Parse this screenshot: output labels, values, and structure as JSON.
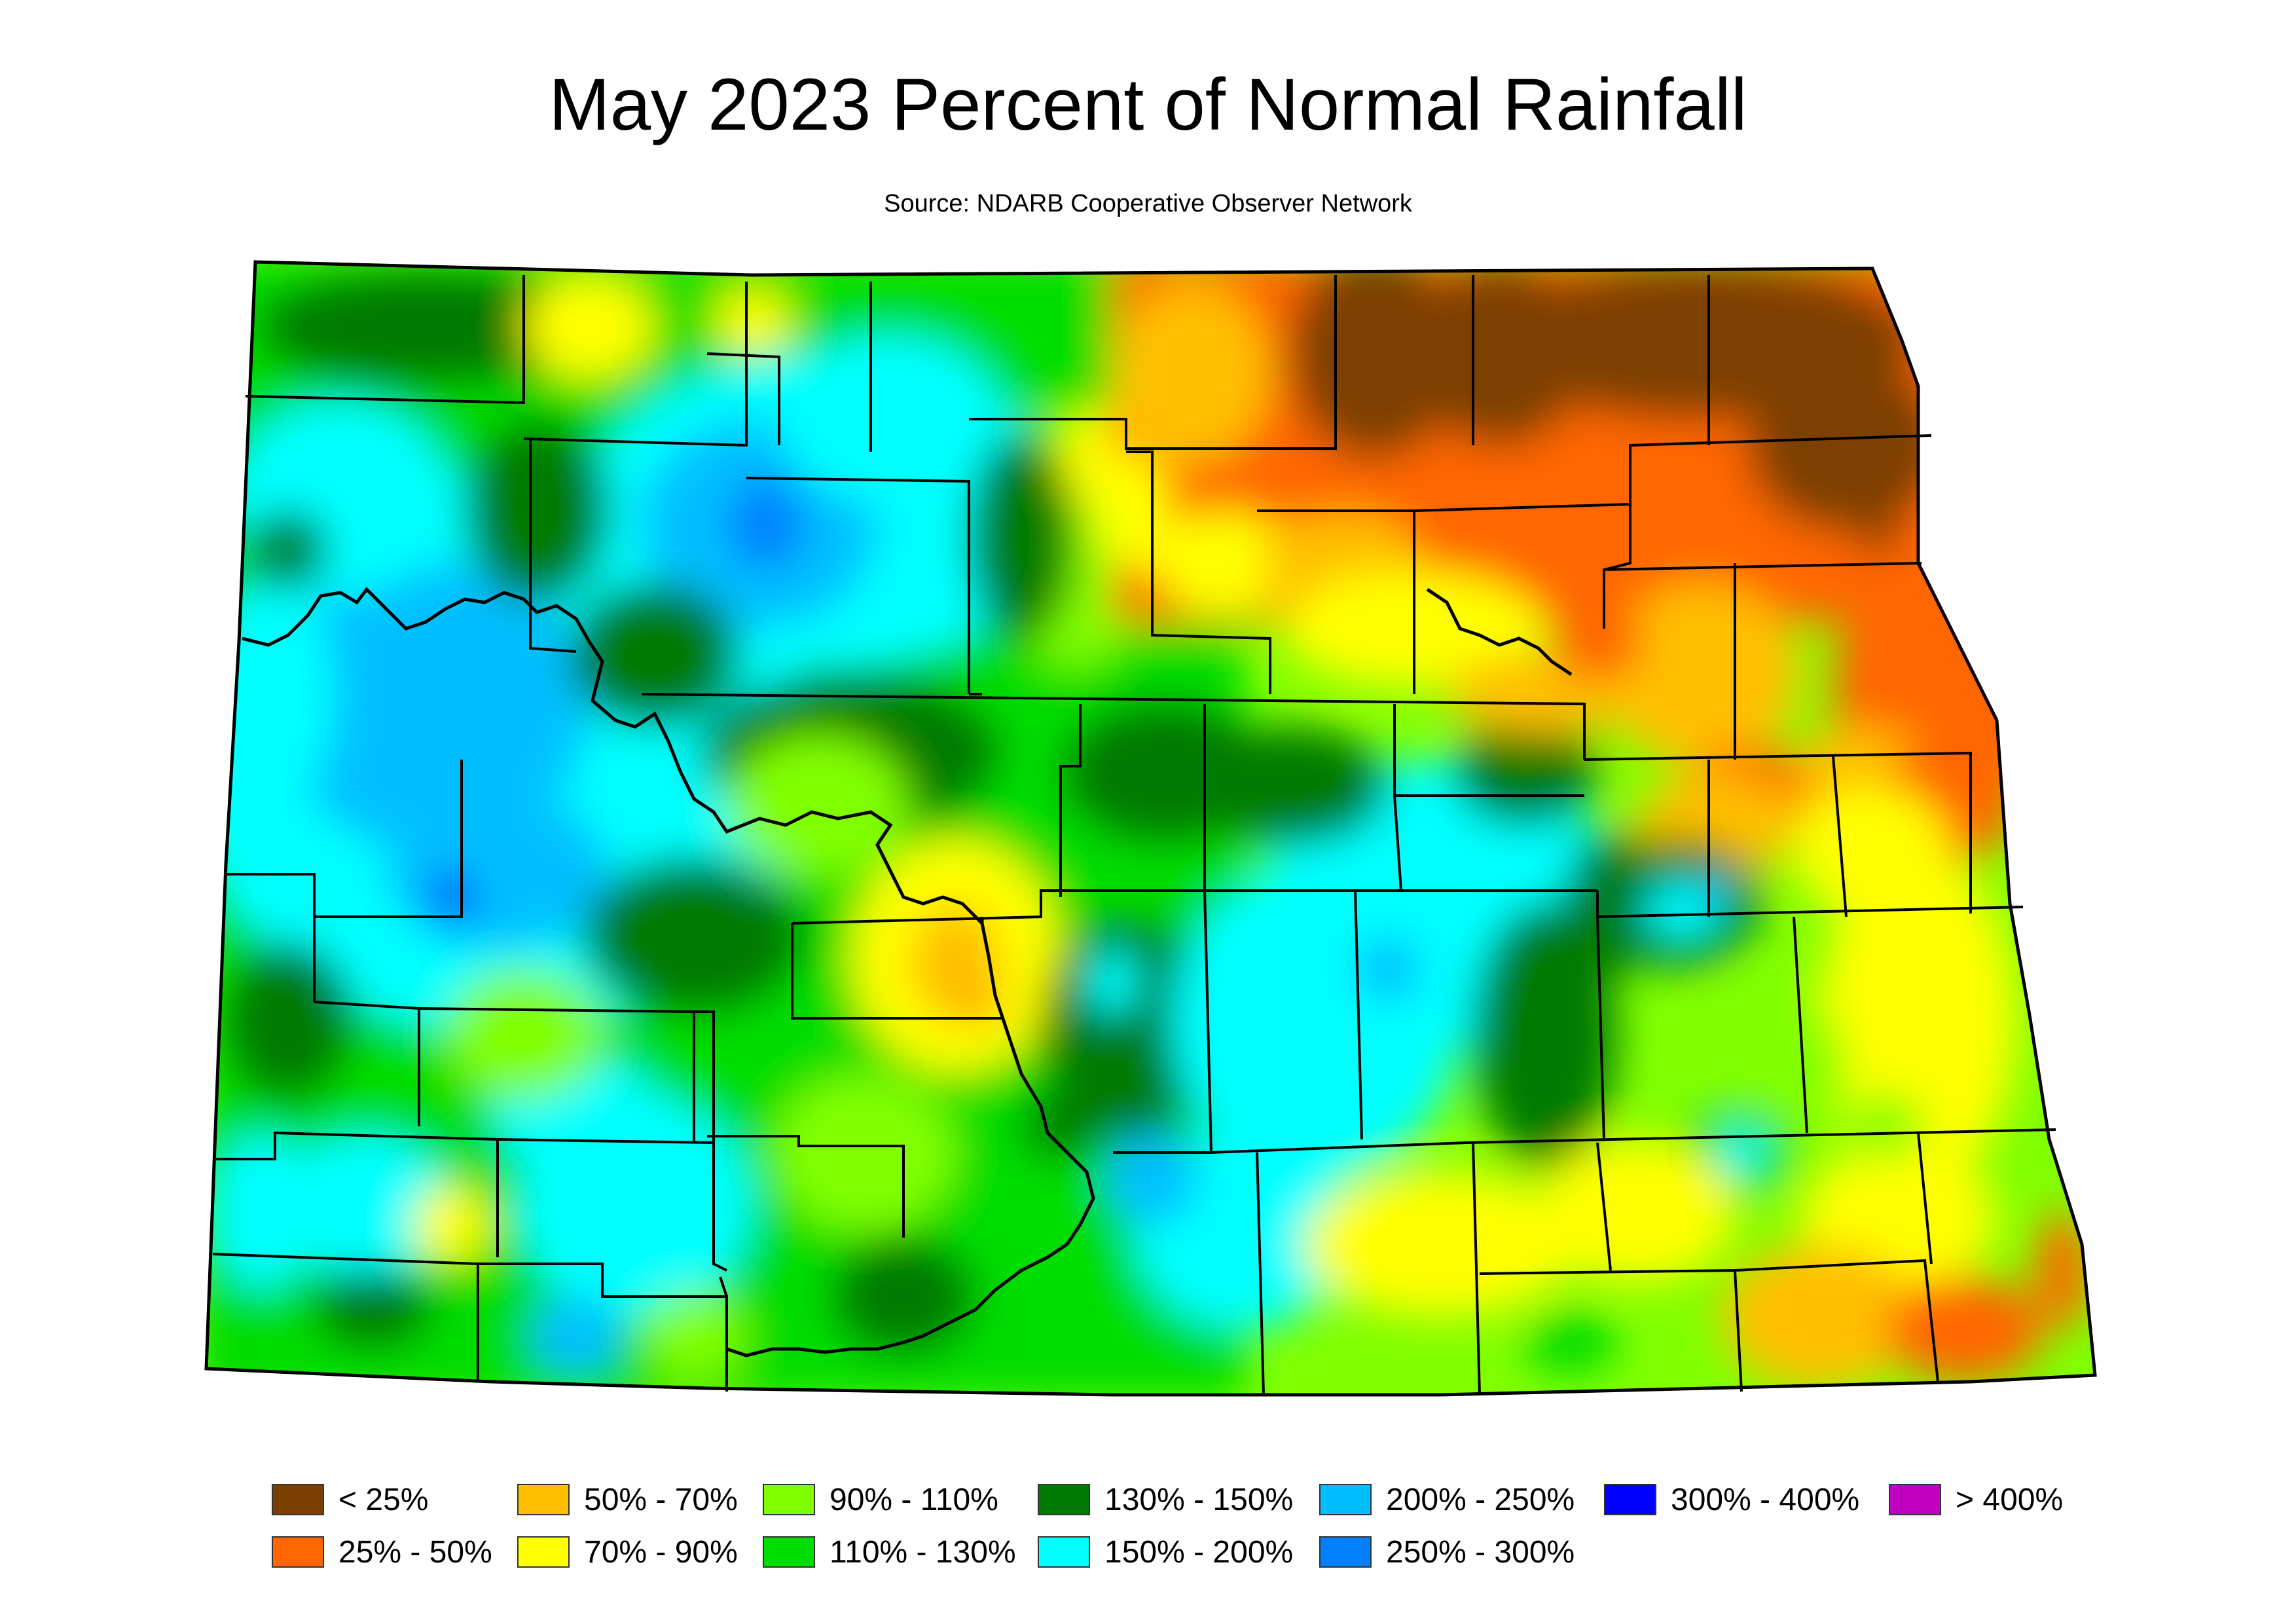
{
  "title": "May 2023 Percent of Normal Rainfall",
  "subtitle": "Source: NDARB Cooperative Observer Network",
  "legend": [
    {
      "label": "< 25%",
      "color": "#7B3F00"
    },
    {
      "label": "25% - 50%",
      "color": "#FF6600"
    },
    {
      "label": "50% - 70%",
      "color": "#FFBF00"
    },
    {
      "label": "70% - 90%",
      "color": "#FFFF00"
    },
    {
      "label": "90% - 110%",
      "color": "#80FF00"
    },
    {
      "label": "110% - 130%",
      "color": "#00DD00"
    },
    {
      "label": "130% - 150%",
      "color": "#007A00"
    },
    {
      "label": "150% - 200%",
      "color": "#00FFFF"
    },
    {
      "label": "200% - 250%",
      "color": "#00BFFF"
    },
    {
      "label": "250% - 300%",
      "color": "#0080FF"
    },
    {
      "label": "300% - 400%",
      "color": "#0000FF"
    },
    {
      "label": "> 400%",
      "color": "#C000C0"
    }
  ]
}
